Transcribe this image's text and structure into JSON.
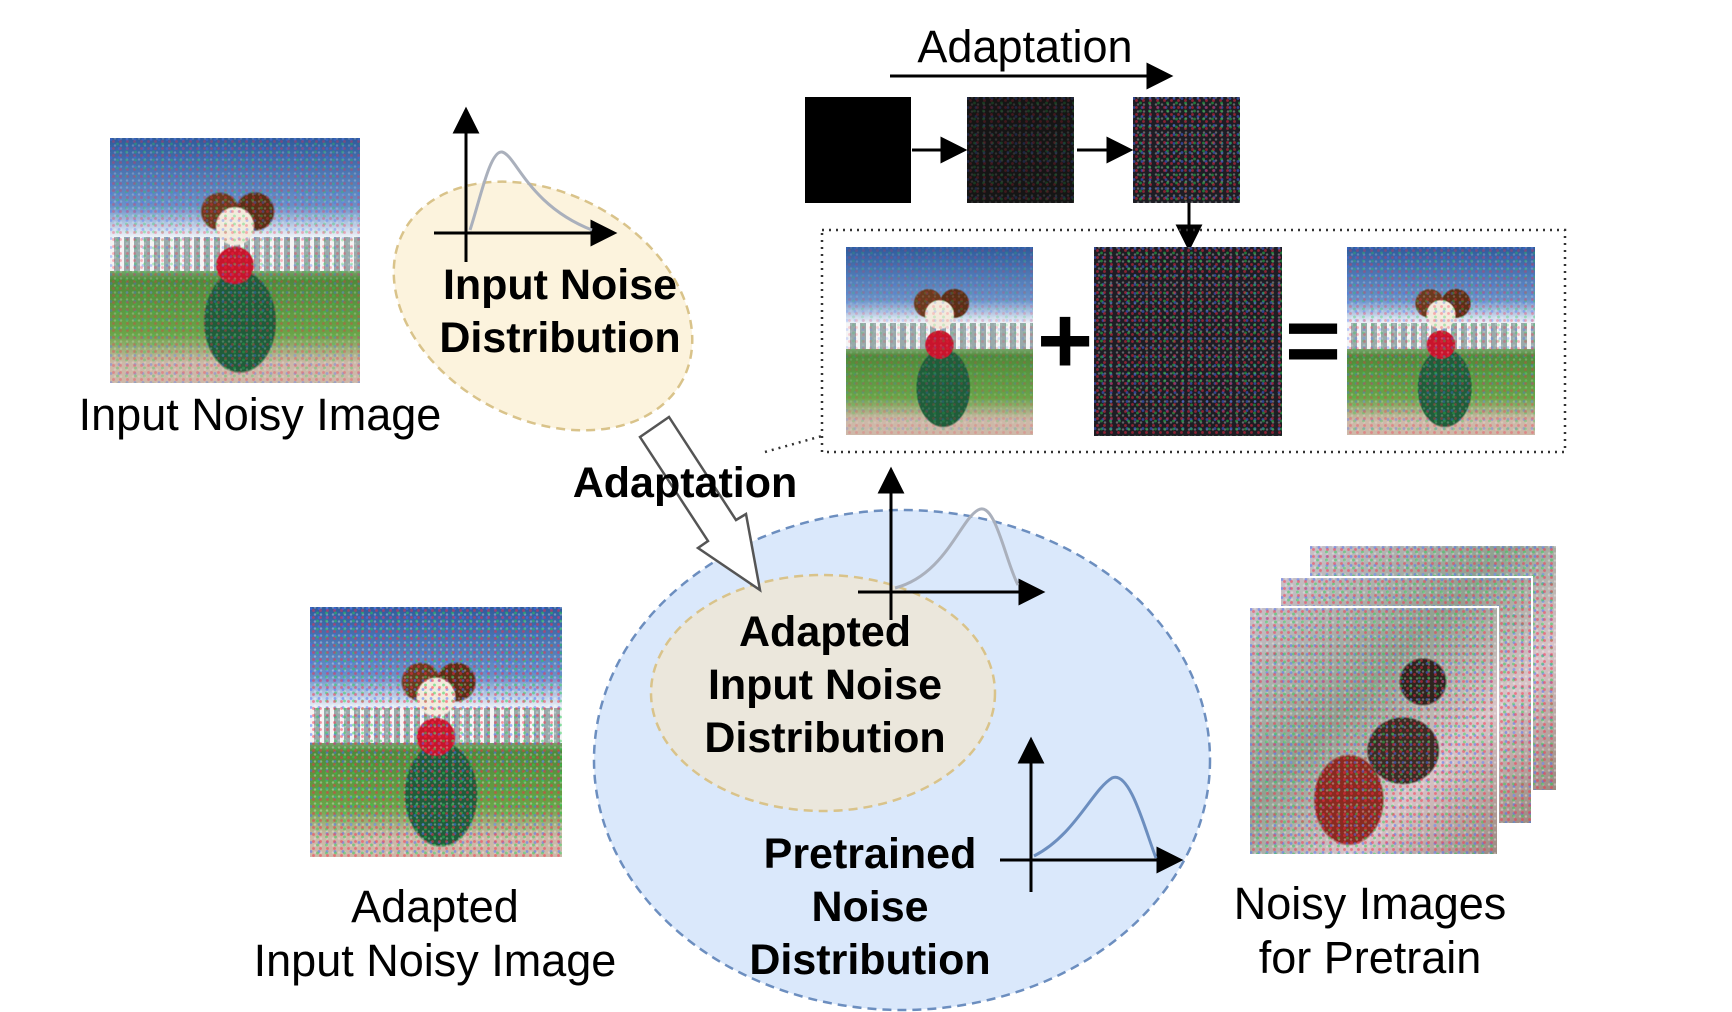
{
  "labels": {
    "input_noisy_image": "Input Noisy Image",
    "input_noise_distribution": [
      "Input Noise",
      "Distribution"
    ],
    "adaptation_top": "Adaptation",
    "adaptation_middle": "Adaptation",
    "plus": "+",
    "equals": "=",
    "adapted_input_noise_distribution": [
      "Adapted",
      "Input Noise",
      "Distribution"
    ],
    "pretrained_noise_distribution": [
      "Pretrained",
      "Noise",
      "Distribution"
    ],
    "adapted_input_noisy_image": [
      "Adapted",
      "Input Noisy Image"
    ],
    "noisy_images_for_pretrain": [
      "Noisy Images",
      "for Pretrain"
    ]
  },
  "colors": {
    "input_noise_ellipse_fill": "#fcf3dd",
    "input_noise_ellipse_stroke": "#d9c38a",
    "pretrained_ellipse_fill": "#dae8fb",
    "pretrained_ellipse_stroke": "#6c8ebf",
    "adapted_ellipse_fill": "#ebe7dc",
    "adapted_ellipse_stroke": "#d9c38a",
    "curve_light": "#aab0bc",
    "curve_blue": "#6c8ebf"
  }
}
